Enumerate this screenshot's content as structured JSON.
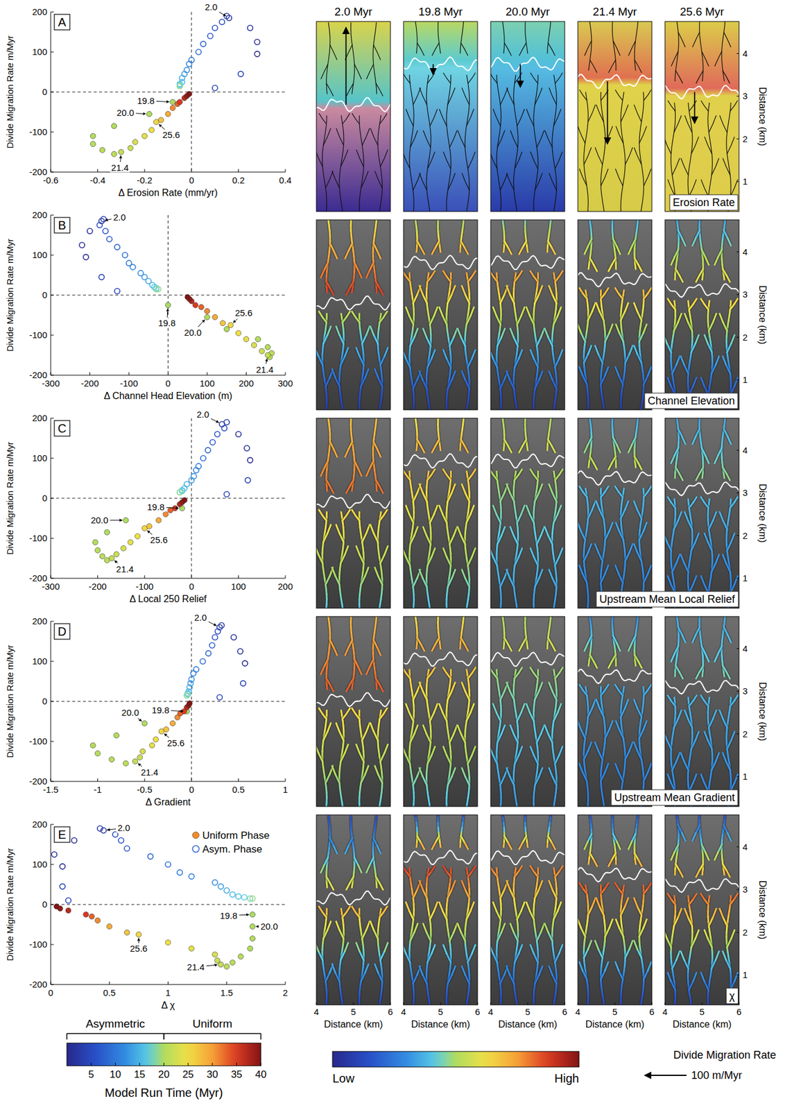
{
  "chart_data": [
    {
      "type": "scatter",
      "panel": "A",
      "xlabel": "Δ Erosion Rate (mm/yr)",
      "ylabel": "Divide Migration Rate m/Myr",
      "xlim": [
        -0.6,
        0.4
      ],
      "xticks": [
        -0.6,
        -0.4,
        -0.2,
        0,
        0.2,
        0.4
      ],
      "ylim": [
        -200,
        200
      ],
      "yticks": [
        -200,
        -100,
        0,
        100,
        200
      ],
      "series": [
        {
          "marker": "filled",
          "color_values": [
            19.8,
            20,
            20.2,
            20.4,
            20.6,
            20.8,
            21,
            21.4,
            22,
            23,
            24,
            25,
            25.6,
            27,
            29,
            31,
            33,
            35,
            37,
            39,
            40
          ],
          "x": [
            -0.08,
            -0.18,
            -0.33,
            -0.42,
            -0.42,
            -0.38,
            -0.33,
            -0.3,
            -0.26,
            -0.24,
            -0.2,
            -0.17,
            -0.15,
            -0.13,
            -0.1,
            -0.08,
            -0.06,
            -0.05,
            -0.03,
            -0.02,
            -0.01
          ],
          "values": [
            -25,
            -55,
            -85,
            -110,
            -130,
            -145,
            -155,
            -150,
            -140,
            -125,
            -110,
            -95,
            -75,
            -70,
            -55,
            -40,
            -30,
            -25,
            -15,
            -10,
            -5
          ]
        },
        {
          "marker": "open",
          "color_values": [
            0.5,
            1,
            1.5,
            2,
            3,
            4,
            4.5,
            5,
            6,
            7,
            8,
            9,
            10,
            11,
            12,
            13,
            14,
            15,
            16,
            17,
            18,
            19
          ],
          "x": [
            0.28,
            0.28,
            0.25,
            0.16,
            0.15,
            0.21,
            0.1,
            0.13,
            0.1,
            0.08,
            0.05,
            0.03,
            0,
            -0.01,
            -0.02,
            -0.03,
            -0.04,
            -0.04,
            -0.05,
            -0.05,
            -0.05,
            -0.05
          ],
          "values": [
            95,
            125,
            160,
            185,
            190,
            45,
            10,
            175,
            160,
            140,
            120,
            100,
            80,
            70,
            55,
            45,
            35,
            25,
            20,
            18,
            15,
            15
          ]
        }
      ],
      "annotations": [
        {
          "text": "2.0",
          "t": 2
        },
        {
          "text": "19.8",
          "t": 19.8
        },
        {
          "text": "20.0",
          "t": 20
        },
        {
          "text": "21.4",
          "t": 21.4
        },
        {
          "text": "25.6",
          "t": 25.6
        }
      ]
    },
    {
      "type": "scatter",
      "panel": "B",
      "xlabel": "Δ Channel Head Elevation (m)",
      "ylabel": "Divide Migration Rate m/Myr",
      "xlim": [
        -300,
        300
      ],
      "xticks": [
        -300,
        -200,
        -100,
        0,
        100,
        200,
        300
      ],
      "ylim": [
        -200,
        200
      ],
      "yticks": [
        -200,
        -100,
        0,
        100,
        200
      ],
      "series": [
        {
          "marker": "filled",
          "color_values": [
            19.8,
            20,
            20.2,
            20.4,
            20.6,
            20.8,
            21,
            21.4,
            22,
            23,
            24,
            25,
            25.6,
            27,
            29,
            31,
            33,
            35,
            37,
            39,
            40
          ],
          "x": [
            0,
            100,
            150,
            230,
            255,
            265,
            260,
            255,
            240,
            220,
            200,
            180,
            160,
            140,
            120,
            100,
            85,
            70,
            60,
            55,
            50
          ],
          "values": [
            -25,
            -55,
            -85,
            -110,
            -130,
            -145,
            -155,
            -150,
            -140,
            -125,
            -110,
            -95,
            -75,
            -70,
            -55,
            -40,
            -30,
            -25,
            -15,
            -10,
            -5
          ]
        },
        {
          "marker": "open",
          "color_values": [
            0.5,
            1,
            1.5,
            2,
            3,
            4,
            4.5,
            5,
            6,
            7,
            8,
            9,
            10,
            11,
            12,
            13,
            14,
            15,
            16,
            17,
            18,
            19
          ],
          "x": [
            -210,
            -220,
            -200,
            -170,
            -165,
            -170,
            -130,
            -175,
            -160,
            -150,
            -130,
            -110,
            -100,
            -90,
            -70,
            -60,
            -50,
            -40,
            -35,
            -30,
            -30,
            -25
          ],
          "values": [
            95,
            125,
            160,
            185,
            190,
            45,
            10,
            175,
            160,
            140,
            120,
            100,
            80,
            70,
            55,
            45,
            35,
            25,
            20,
            18,
            15,
            15
          ]
        }
      ],
      "annotations": [
        {
          "text": "2.0",
          "t": 2
        },
        {
          "text": "19.8",
          "t": 19.8
        },
        {
          "text": "20.0",
          "t": 20
        },
        {
          "text": "21.4",
          "t": 21.4
        },
        {
          "text": "25.6",
          "t": 25.6
        }
      ]
    },
    {
      "type": "scatter",
      "panel": "C",
      "xlabel": "Δ Local 250 Relief",
      "ylabel": "Divide Migration Rate m/Myr",
      "xlim": [
        -300,
        200
      ],
      "xticks": [
        -300,
        -200,
        -100,
        0,
        100,
        200
      ],
      "ylim": [
        -200,
        200
      ],
      "yticks": [
        -200,
        -100,
        0,
        100,
        200
      ],
      "series": [
        {
          "marker": "filled",
          "color_values": [
            19.8,
            20,
            20.2,
            20.4,
            20.6,
            20.8,
            21,
            21.4,
            22,
            23,
            24,
            25,
            25.6,
            27,
            29,
            31,
            33,
            35,
            37,
            39,
            40
          ],
          "x": [
            -20,
            -140,
            -180,
            -205,
            -200,
            -190,
            -180,
            -170,
            -160,
            -145,
            -130,
            -115,
            -100,
            -90,
            -70,
            -55,
            -45,
            -35,
            -25,
            -20,
            -15
          ],
          "values": [
            -25,
            -55,
            -85,
            -110,
            -130,
            -145,
            -155,
            -150,
            -140,
            -125,
            -110,
            -95,
            -75,
            -70,
            -55,
            -40,
            -30,
            -25,
            -15,
            -10,
            -5
          ]
        },
        {
          "marker": "open",
          "color_values": [
            0.5,
            1,
            1.5,
            2,
            3,
            4,
            4.5,
            5,
            6,
            7,
            8,
            9,
            10,
            11,
            12,
            13,
            14,
            15,
            16,
            17,
            18,
            19
          ],
          "x": [
            125,
            118,
            100,
            65,
            75,
            120,
            75,
            70,
            55,
            45,
            35,
            25,
            15,
            10,
            5,
            0,
            -10,
            -15,
            -20,
            -20,
            -25,
            -25
          ],
          "values": [
            95,
            125,
            160,
            185,
            190,
            45,
            10,
            175,
            160,
            140,
            120,
            100,
            80,
            70,
            55,
            45,
            35,
            25,
            20,
            18,
            15,
            15
          ]
        }
      ],
      "annotations": [
        {
          "text": "2.0",
          "t": 2
        },
        {
          "text": "19.8",
          "t": 19.8
        },
        {
          "text": "20.0",
          "t": 20
        },
        {
          "text": "21.4",
          "t": 21.4
        },
        {
          "text": "25.6",
          "t": 25.6
        }
      ]
    },
    {
      "type": "scatter",
      "panel": "D",
      "xlabel": "Δ Gradient",
      "ylabel": "Divide Migration Rate m/Myr",
      "xlim": [
        -1.5,
        1
      ],
      "xticks": [
        -1.5,
        -1,
        -0.5,
        0,
        0.5,
        1
      ],
      "ylim": [
        -200,
        200
      ],
      "yticks": [
        -200,
        -100,
        0,
        100,
        200
      ],
      "series": [
        {
          "marker": "filled",
          "color_values": [
            19.8,
            20,
            20.2,
            20.4,
            20.6,
            20.8,
            21,
            21.4,
            22,
            23,
            24,
            25,
            25.6,
            27,
            29,
            31,
            33,
            35,
            37,
            39,
            40
          ],
          "x": [
            -0.05,
            -0.5,
            -0.8,
            -1.05,
            -1,
            -0.85,
            -0.7,
            -0.6,
            -0.55,
            -0.52,
            -0.42,
            -0.38,
            -0.32,
            -0.27,
            -0.2,
            -0.15,
            -0.12,
            -0.08,
            -0.05,
            -0.03,
            -0.02
          ],
          "values": [
            -25,
            -55,
            -85,
            -110,
            -130,
            -145,
            -155,
            -150,
            -140,
            -125,
            -110,
            -95,
            -75,
            -70,
            -55,
            -40,
            -30,
            -25,
            -15,
            -10,
            -5
          ]
        },
        {
          "marker": "open",
          "color_values": [
            0.5,
            1,
            1.5,
            2,
            3,
            4,
            4.5,
            5,
            6,
            7,
            8,
            9,
            10,
            11,
            12,
            13,
            14,
            15,
            16,
            17,
            18,
            19
          ],
          "x": [
            0.57,
            0.52,
            0.45,
            0.3,
            0.32,
            0.55,
            0.3,
            0.28,
            0.25,
            0.22,
            0.18,
            0.12,
            0.05,
            0.02,
            0,
            -0.01,
            -0.02,
            -0.03,
            -0.04,
            -0.04,
            -0.05,
            -0.05
          ],
          "values": [
            95,
            125,
            160,
            185,
            190,
            45,
            10,
            175,
            160,
            140,
            120,
            100,
            80,
            70,
            55,
            45,
            35,
            25,
            20,
            18,
            15,
            15
          ]
        }
      ],
      "annotations": [
        {
          "text": "2.0",
          "t": 2
        },
        {
          "text": "19.8",
          "t": 19.8
        },
        {
          "text": "20.0",
          "t": 20
        },
        {
          "text": "21.4",
          "t": 21.4
        },
        {
          "text": "25.6",
          "t": 25.6
        }
      ]
    },
    {
      "type": "scatter",
      "panel": "E",
      "xlabel": "Δ χ",
      "ylabel": "Divide Migration Rate m/Myr",
      "xlim": [
        0,
        2
      ],
      "xticks": [
        0,
        0.5,
        1,
        1.5,
        2
      ],
      "ylim": [
        -200,
        200
      ],
      "yticks": [
        -200,
        -100,
        0,
        100,
        200
      ],
      "legend": "upper right",
      "series": [
        {
          "name": "Uniform Phase",
          "color": "#f28c28",
          "marker": "filled",
          "color_values": [
            19.8,
            20,
            20.2,
            20.4,
            20.6,
            20.8,
            21,
            21.4,
            22,
            23,
            24,
            25,
            25.6,
            27,
            29,
            31,
            33,
            35,
            37,
            39,
            40
          ],
          "x": [
            1.72,
            1.72,
            1.72,
            1.7,
            1.62,
            1.55,
            1.5,
            1.45,
            1.42,
            1.4,
            1.2,
            1,
            0.75,
            0.65,
            0.5,
            0.4,
            0.35,
            0.3,
            0.15,
            0.08,
            0.05
          ],
          "values": [
            -25,
            -55,
            -85,
            -110,
            -130,
            -145,
            -155,
            -150,
            -140,
            -125,
            -110,
            -95,
            -75,
            -70,
            -55,
            -40,
            -30,
            -25,
            -15,
            -10,
            -5
          ]
        },
        {
          "name": "Asym. Phase",
          "color": "#3a6fd0",
          "marker": "open",
          "color_values": [
            0.5,
            1,
            1.5,
            2,
            3,
            4,
            4.5,
            5,
            6,
            7,
            8,
            9,
            10,
            11,
            12,
            13,
            14,
            15,
            16,
            17,
            18,
            19
          ],
          "x": [
            0.1,
            0.03,
            0.2,
            0.45,
            0.42,
            0.1,
            0.15,
            0.55,
            0.6,
            0.65,
            0.85,
            1,
            1.1,
            1.2,
            1.4,
            1.45,
            1.5,
            1.55,
            1.6,
            1.65,
            1.7,
            1.72
          ],
          "values": [
            95,
            125,
            160,
            185,
            190,
            45,
            10,
            175,
            160,
            140,
            120,
            100,
            80,
            70,
            55,
            45,
            35,
            25,
            20,
            18,
            15,
            15
          ]
        }
      ],
      "annotations": [
        {
          "text": "2.0",
          "t": 2
        },
        {
          "text": "19.8",
          "t": 19.8
        },
        {
          "text": "20.0",
          "t": 20
        },
        {
          "text": "21.4",
          "t": 21.4
        },
        {
          "text": "25.6",
          "t": 25.6
        }
      ]
    }
  ],
  "colorbar": {
    "title": "Model Run Time (Myr)",
    "range": [
      0,
      40
    ],
    "ticks": [
      5,
      10,
      15,
      20,
      25,
      30,
      35,
      40
    ],
    "phases": [
      {
        "label": "Asymmetric",
        "range": [
          0,
          20
        ]
      },
      {
        "label": "Uniform",
        "range": [
          20,
          40
        ]
      }
    ]
  },
  "maps": {
    "columns": [
      {
        "title": "2.0 Myr",
        "divide_km": 2.8,
        "migration_rate": 185
      },
      {
        "title": "19.8 Myr",
        "divide_km": 3.75,
        "migration_rate": -25
      },
      {
        "title": "20.0 Myr",
        "divide_km": 3.75,
        "migration_rate": -55
      },
      {
        "title": "21.4 Myr",
        "divide_km": 3.35,
        "migration_rate": -150
      },
      {
        "title": "25.6 Myr",
        "divide_km": 3.1,
        "migration_rate": -75
      }
    ],
    "rows": [
      "Erosion Rate",
      "Channel Elevation",
      "Upstream Mean Local Relief",
      "Upstream Mean Gradient",
      "χ"
    ],
    "xlabel": "Distance (km)",
    "ylabel": "Distance (km)",
    "xlim": [
      4,
      6
    ],
    "xticks": [
      4,
      5,
      6
    ],
    "ylim": [
      0.3,
      4.75
    ],
    "yticks": [
      1,
      2,
      3,
      4
    ],
    "colorbar": {
      "low": "Low",
      "high": "High"
    },
    "arrow_key": {
      "title": "Divide Migration Rate",
      "value": 100,
      "label": "100 m/Myr"
    }
  }
}
